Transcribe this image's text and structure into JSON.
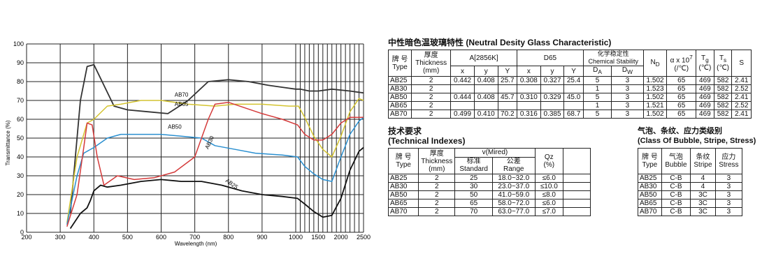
{
  "chart_data": {
    "type": "line",
    "xlabel": "Wavelength (nm)",
    "ylabel": "Transmittance (%)",
    "xlim": [
      200,
      2500
    ],
    "ylim": [
      0,
      100
    ],
    "grid": true,
    "x_ticks": [
      200,
      300,
      400,
      500,
      600,
      700,
      800,
      900,
      1000,
      1100,
      1200,
      1300,
      1400,
      1500,
      1600,
      1700,
      1800,
      1900,
      2000,
      2100,
      2200,
      2300,
      2400,
      2500
    ],
    "x_tick_labels": [
      "200",
      "300",
      "400",
      "500",
      "600",
      "700",
      "800",
      "900",
      "1000",
      "1500",
      "2000",
      "2500"
    ],
    "y_ticks": [
      0,
      10,
      20,
      30,
      40,
      50,
      60,
      70,
      80,
      90,
      100
    ],
    "series": [
      {
        "name": "AB70",
        "color": "#333333",
        "points": [
          [
            330,
            10
          ],
          [
            360,
            70
          ],
          [
            380,
            88
          ],
          [
            400,
            89
          ],
          [
            430,
            78
          ],
          [
            460,
            67
          ],
          [
            500,
            65
          ],
          [
            560,
            64
          ],
          [
            620,
            63
          ],
          [
            680,
            70
          ],
          [
            740,
            80
          ],
          [
            800,
            81
          ],
          [
            860,
            80
          ],
          [
            920,
            78
          ],
          [
            960,
            77
          ],
          [
            1000,
            76
          ],
          [
            1100,
            76
          ],
          [
            1300,
            75
          ],
          [
            1500,
            75
          ],
          [
            1800,
            76
          ],
          [
            2200,
            75
          ],
          [
            2500,
            74
          ]
        ]
      },
      {
        "name": "AB65",
        "color": "#d4c430",
        "points": [
          [
            320,
            5
          ],
          [
            350,
            40
          ],
          [
            380,
            58
          ],
          [
            400,
            60
          ],
          [
            440,
            67
          ],
          [
            480,
            68
          ],
          [
            540,
            70
          ],
          [
            600,
            70
          ],
          [
            680,
            68
          ],
          [
            760,
            67
          ],
          [
            820,
            68
          ],
          [
            900,
            68
          ],
          [
            980,
            67
          ],
          [
            1060,
            67
          ],
          [
            1200,
            61
          ],
          [
            1400,
            51
          ],
          [
            1600,
            44
          ],
          [
            1800,
            40
          ],
          [
            2000,
            51
          ],
          [
            2200,
            64
          ],
          [
            2400,
            71
          ],
          [
            2500,
            70
          ]
        ]
      },
      {
        "name": "AB50",
        "color": "#2a8fd0",
        "points": [
          [
            320,
            4
          ],
          [
            350,
            30
          ],
          [
            370,
            42
          ],
          [
            400,
            45
          ],
          [
            440,
            50
          ],
          [
            480,
            52
          ],
          [
            540,
            52
          ],
          [
            600,
            52
          ],
          [
            660,
            51
          ],
          [
            720,
            50
          ],
          [
            760,
            46
          ],
          [
            820,
            44
          ],
          [
            880,
            42
          ],
          [
            960,
            41
          ],
          [
            1040,
            40
          ],
          [
            1200,
            35
          ],
          [
            1400,
            31
          ],
          [
            1600,
            28
          ],
          [
            1800,
            27
          ],
          [
            2000,
            40
          ],
          [
            2200,
            52
          ],
          [
            2400,
            59
          ],
          [
            2500,
            61
          ]
        ]
      },
      {
        "name": "AB30",
        "color": "#d43a3a",
        "points": [
          [
            320,
            3
          ],
          [
            350,
            20
          ],
          [
            370,
            45
          ],
          [
            380,
            58
          ],
          [
            395,
            57
          ],
          [
            410,
            40
          ],
          [
            430,
            25
          ],
          [
            470,
            30
          ],
          [
            520,
            28
          ],
          [
            580,
            29
          ],
          [
            640,
            32
          ],
          [
            700,
            40
          ],
          [
            740,
            60
          ],
          [
            760,
            68
          ],
          [
            800,
            69
          ],
          [
            850,
            66
          ],
          [
            900,
            63
          ],
          [
            960,
            60
          ],
          [
            1040,
            57
          ],
          [
            1200,
            52
          ],
          [
            1400,
            49
          ],
          [
            1600,
            49
          ],
          [
            1800,
            52
          ],
          [
            2000,
            58
          ],
          [
            2200,
            61
          ],
          [
            2500,
            61
          ]
        ]
      },
      {
        "name": "AB25",
        "color": "#111111",
        "points": [
          [
            330,
            2
          ],
          [
            360,
            10
          ],
          [
            380,
            13
          ],
          [
            390,
            17
          ],
          [
            400,
            22
          ],
          [
            420,
            25
          ],
          [
            440,
            24
          ],
          [
            480,
            25
          ],
          [
            540,
            27
          ],
          [
            600,
            28
          ],
          [
            660,
            27
          ],
          [
            720,
            27
          ],
          [
            780,
            25
          ],
          [
            840,
            22
          ],
          [
            900,
            20
          ],
          [
            960,
            19
          ],
          [
            1040,
            18
          ],
          [
            1200,
            15
          ],
          [
            1400,
            11
          ],
          [
            1600,
            8
          ],
          [
            1800,
            9
          ],
          [
            2000,
            18
          ],
          [
            2200,
            33
          ],
          [
            2400,
            43
          ],
          [
            2500,
            45
          ]
        ]
      }
    ],
    "labels": [
      {
        "text": "AB70",
        "x": 640,
        "y": 72
      },
      {
        "text": "AB65",
        "x": 640,
        "y": 67
      },
      {
        "text": "AB50",
        "x": 620,
        "y": 55
      },
      {
        "text": "AB30",
        "x": 740,
        "y": 44
      },
      {
        "text": "AB25",
        "x": 790,
        "y": 27
      }
    ]
  },
  "ndg": {
    "title": "中性暗色温玻璃特性 (Neutral Desity Glass Characteristic)",
    "h_type_cn": "牌 号",
    "h_type_en": "Type",
    "h_thick_cn": "厚度",
    "h_thick_en": "Thickness",
    "h_thick_unit": "(mm)",
    "h_a": "A[2856K]",
    "h_d65": "D65",
    "h_chem_cn": "化学稳定性",
    "h_chem_en": "Chemical Stability",
    "h_nd": "N",
    "h_nd_sub": "D",
    "h_alpha": "α x 10",
    "h_alpha_sup": "7",
    "h_alpha_unit": "(/℃)",
    "h_tg": "T",
    "h_tg_sub": "g",
    "h_tg_unit": "(℃)",
    "h_ts": "T",
    "h_ts_sub": "s",
    "h_ts_unit": "(℃)",
    "h_s": "S",
    "sub_x": "x",
    "sub_y": "y",
    "sub_Y": "Y",
    "sub_da": "D",
    "sub_da_sub": "A",
    "sub_dw": "D",
    "sub_dw_sub": "W",
    "rows": [
      [
        "AB25",
        "2",
        "0.442",
        "0.408",
        "25.7",
        "0.308",
        "0.327",
        "25.4",
        "5",
        "3",
        "1.502",
        "65",
        "469",
        "582",
        "2.41"
      ],
      [
        "AB30",
        "2",
        "",
        "",
        "",
        "",
        "",
        "",
        "1",
        "3",
        "1.523",
        "65",
        "469",
        "582",
        "2.52"
      ],
      [
        "AB50",
        "2",
        "0.444",
        "0.408",
        "45.7",
        "0.310",
        "0.329",
        "45.0",
        "5",
        "3",
        "1.502",
        "65",
        "469",
        "582",
        "2.41"
      ],
      [
        "AB65",
        "2",
        "",
        "",
        "",
        "",
        "",
        "",
        "1",
        "3",
        "1.521",
        "65",
        "469",
        "582",
        "2.52"
      ],
      [
        "AB70",
        "2",
        "0.499",
        "0.410",
        "70.2",
        "0.316",
        "0.385",
        "68.7",
        "5",
        "3",
        "1.502",
        "65",
        "469",
        "582",
        "2.41"
      ]
    ]
  },
  "tech": {
    "title_cn": "技术要求",
    "title_en": "(Technical Indexes)",
    "h_type_cn": "牌 号",
    "h_type_en": "Type",
    "h_thick_cn": "厚度",
    "h_thick_en": "Thickness",
    "h_thick_unit": "(mm)",
    "h_v": "v(Mired)",
    "h_std_cn": "标准",
    "h_std_en": "Standard",
    "h_range_cn": "公差",
    "h_range_en": "Range",
    "h_qz": "Qz",
    "h_qz_unit": "(%)",
    "rows": [
      [
        "AB25",
        "2",
        "25",
        "18.0~32.0",
        "≤6.0"
      ],
      [
        "AB30",
        "2",
        "30",
        "23.0~37.0",
        "≤10.0"
      ],
      [
        "AB50",
        "2",
        "50",
        "41.0~59.0",
        "≤8.0"
      ],
      [
        "AB65",
        "2",
        "65",
        "58.0~72.0",
        "≤6.0"
      ],
      [
        "AB70",
        "2",
        "70",
        "63.0~77.0",
        "≤7.0"
      ]
    ]
  },
  "bubble": {
    "title_cn": "气泡、条纹、应力类级别",
    "title_en": "(Class Of Bubble, Stripe, Stress)",
    "h_type_cn": "牌 号",
    "h_type_en": "Type",
    "h_bubble_cn": "气泡",
    "h_bubble_en": "Bubble",
    "h_stripe_cn": "条纹",
    "h_stripe_en": "Stripe",
    "h_stress_cn": "应力",
    "h_stress_en": "Stress",
    "rows": [
      [
        "AB25",
        "C-B",
        "4",
        "3"
      ],
      [
        "AB30",
        "C-B",
        "4",
        "3"
      ],
      [
        "AB50",
        "C-B",
        "3C",
        "3"
      ],
      [
        "AB65",
        "C-B",
        "3C",
        "3"
      ],
      [
        "AB70",
        "C-B",
        "3C",
        "3"
      ]
    ]
  }
}
